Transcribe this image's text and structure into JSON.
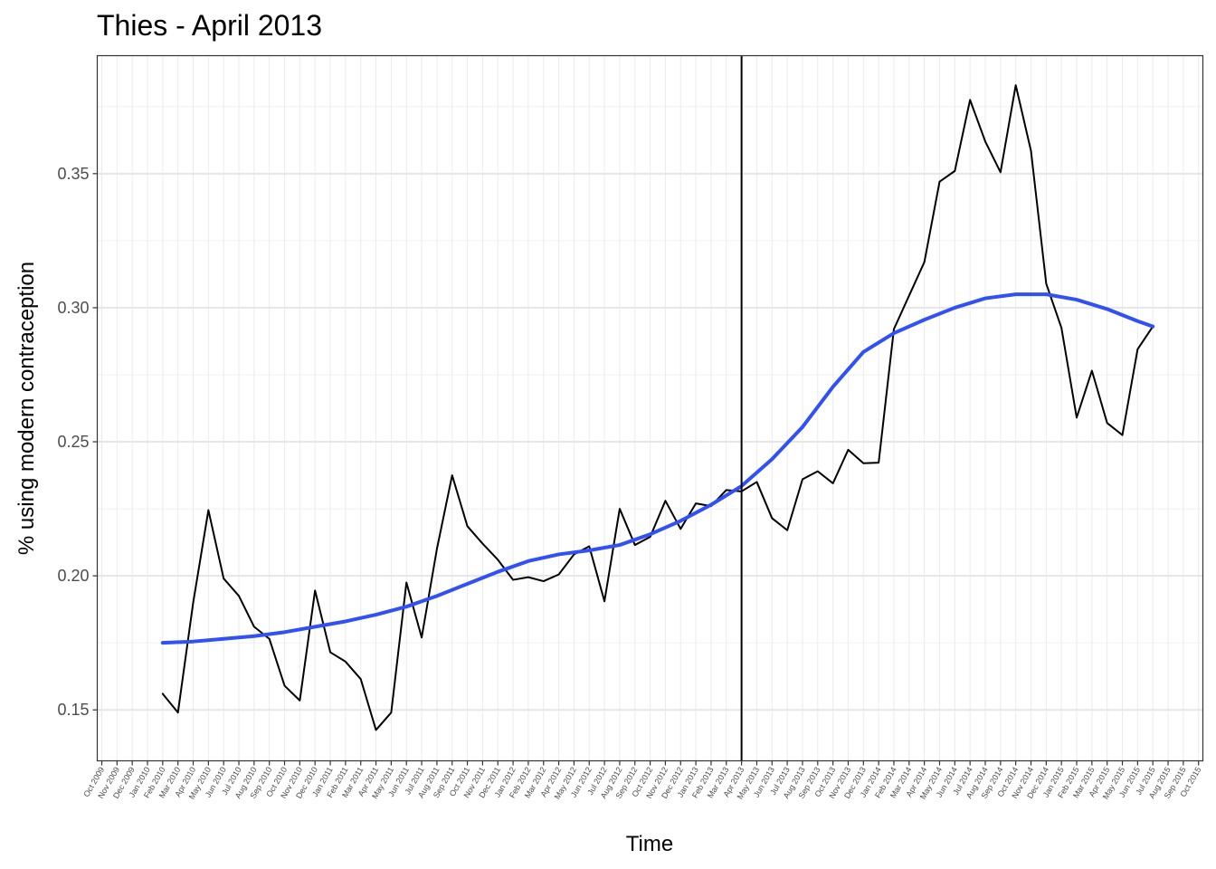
{
  "chart_data": {
    "type": "line",
    "title": "Thies - April 2013",
    "xlabel": "Time",
    "ylabel": "% using modern contraception",
    "x_tick_labels": [
      "Oct 2009",
      "Nov 2009",
      "Dec 2009",
      "Jan 2010",
      "Feb 2010",
      "Mar 2010",
      "Apr 2010",
      "May 2010",
      "Jun 2010",
      "Jul 2010",
      "Aug 2010",
      "Sep 2010",
      "Oct 2010",
      "Nov 2010",
      "Dec 2010",
      "Jan 2011",
      "Feb 2011",
      "Mar 2011",
      "Apr 2011",
      "May 2011",
      "Jun 2011",
      "Jul 2011",
      "Aug 2011",
      "Sep 2011",
      "Oct 2011",
      "Nov 2011",
      "Dec 2011",
      "Jan 2012",
      "Feb 2012",
      "Mar 2012",
      "Apr 2012",
      "May 2012",
      "Jun 2012",
      "Jul 2012",
      "Aug 2012",
      "Sep 2012",
      "Oct 2012",
      "Nov 2012",
      "Dec 2012",
      "Jan 2013",
      "Feb 2013",
      "Mar 2013",
      "Apr 2013",
      "May 2013",
      "Jun 2013",
      "Jul 2013",
      "Aug 2013",
      "Sep 2013",
      "Oct 2013",
      "Nov 2013",
      "Dec 2013",
      "Jan 2014",
      "Feb 2014",
      "Mar 2014",
      "Apr 2014",
      "May 2014",
      "Jun 2014",
      "Jul 2014",
      "Aug 2014",
      "Sep 2014",
      "Oct 2014",
      "Nov 2014",
      "Dec 2014",
      "Jan 2015",
      "Feb 2015",
      "Mar 2015",
      "Apr 2015",
      "May 2015",
      "Jun 2015",
      "Jul 2015",
      "Aug 2015",
      "Sep 2015",
      "Oct 2015"
    ],
    "y_ticks": [
      "0.15",
      "0.20",
      "0.25",
      "0.30",
      "0.35"
    ],
    "ylim": [
      0.131,
      0.394
    ],
    "grid": true,
    "series": [
      {
        "color": "#000000",
        "points": [
          [
            "Feb 2010",
            0.156
          ],
          [
            "Mar 2010",
            0.149
          ],
          [
            "Apr 2010",
            0.19
          ],
          [
            "May 2010",
            0.2245
          ],
          [
            "Jun 2010",
            0.199
          ],
          [
            "Jul 2010",
            0.1925
          ],
          [
            "Aug 2010",
            0.181
          ],
          [
            "Sep 2010",
            0.1765
          ],
          [
            "Oct 2010",
            0.159
          ],
          [
            "Nov 2010",
            0.1535
          ],
          [
            "Dec 2010",
            0.1945
          ],
          [
            "Jan 2011",
            0.1715
          ],
          [
            "Feb 2011",
            0.168
          ],
          [
            "Mar 2011",
            0.1615
          ],
          [
            "Apr 2011",
            0.1425
          ],
          [
            "May 2011",
            0.149
          ],
          [
            "Jun 2011",
            0.1975
          ],
          [
            "Jul 2011",
            0.177
          ],
          [
            "Aug 2011",
            0.21
          ],
          [
            "Sep 2011",
            0.2375
          ],
          [
            "Oct 2011",
            0.2185
          ],
          [
            "Nov 2011",
            0.212
          ],
          [
            "Dec 2011",
            0.206
          ],
          [
            "Jan 2012",
            0.1985
          ],
          [
            "Feb 2012",
            0.1995
          ],
          [
            "Mar 2012",
            0.198
          ],
          [
            "Apr 2012",
            0.2005
          ],
          [
            "May 2012",
            0.208
          ],
          [
            "Jun 2012",
            0.211
          ],
          [
            "Jul 2012",
            0.1905
          ],
          [
            "Aug 2012",
            0.225
          ],
          [
            "Sep 2012",
            0.2115
          ],
          [
            "Oct 2012",
            0.2145
          ],
          [
            "Nov 2012",
            0.228
          ],
          [
            "Dec 2012",
            0.2175
          ],
          [
            "Jan 2013",
            0.227
          ],
          [
            "Feb 2013",
            0.226
          ],
          [
            "Mar 2013",
            0.232
          ],
          [
            "Apr 2013",
            0.2315
          ],
          [
            "May 2013",
            0.235
          ],
          [
            "Jun 2013",
            0.2215
          ],
          [
            "Jul 2013",
            0.217
          ],
          [
            "Aug 2013",
            0.236
          ],
          [
            "Sep 2013",
            0.239
          ],
          [
            "Oct 2013",
            0.2345
          ],
          [
            "Nov 2013",
            0.247
          ],
          [
            "Dec 2013",
            0.242
          ],
          [
            "Jan 2014",
            0.2422
          ],
          [
            "Feb 2014",
            0.292
          ],
          [
            "Mar 2014",
            0.3045
          ],
          [
            "Apr 2014",
            0.317
          ],
          [
            "May 2014",
            0.347
          ],
          [
            "Jun 2014",
            0.351
          ],
          [
            "Jul 2014",
            0.3775
          ],
          [
            "Aug 2014",
            0.362
          ],
          [
            "Sep 2014",
            0.3505
          ],
          [
            "Oct 2014",
            0.383
          ],
          [
            "Nov 2014",
            0.3585
          ],
          [
            "Dec 2014",
            0.309
          ],
          [
            "Jan 2015",
            0.2925
          ],
          [
            "Feb 2015",
            0.259
          ],
          [
            "Mar 2015",
            0.2765
          ],
          [
            "Apr 2015",
            0.257
          ],
          [
            "May 2015",
            0.2525
          ],
          [
            "Jun 2015",
            0.2845
          ],
          [
            "Jul 2015",
            0.293
          ]
        ]
      },
      {
        "color": "#3050f8",
        "points": [
          [
            "Feb 2010",
            0.175
          ],
          [
            "Apr 2010",
            0.1755
          ],
          [
            "Jun 2010",
            0.1765
          ],
          [
            "Aug 2010",
            0.1775
          ],
          [
            "Oct 2010",
            0.179
          ],
          [
            "Dec 2010",
            0.181
          ],
          [
            "Feb 2011",
            0.183
          ],
          [
            "Apr 2011",
            0.1855
          ],
          [
            "Jun 2011",
            0.1885
          ],
          [
            "Aug 2011",
            0.1925
          ],
          [
            "Oct 2011",
            0.197
          ],
          [
            "Dec 2011",
            0.2015
          ],
          [
            "Feb 2012",
            0.2055
          ],
          [
            "Apr 2012",
            0.208
          ],
          [
            "Jun 2012",
            0.2095
          ],
          [
            "Aug 2012",
            0.2115
          ],
          [
            "Oct 2012",
            0.2155
          ],
          [
            "Dec 2012",
            0.2205
          ],
          [
            "Feb 2013",
            0.2265
          ],
          [
            "Apr 2013",
            0.2335
          ],
          [
            "Jun 2013",
            0.2435
          ],
          [
            "Aug 2013",
            0.2555
          ],
          [
            "Oct 2013",
            0.2705
          ],
          [
            "Dec 2013",
            0.2835
          ],
          [
            "Feb 2014",
            0.2905
          ],
          [
            "Apr 2014",
            0.2955
          ],
          [
            "Jun 2014",
            0.3
          ],
          [
            "Aug 2014",
            0.3035
          ],
          [
            "Oct 2014",
            0.305
          ],
          [
            "Dec 2014",
            0.305
          ],
          [
            "Feb 2015",
            0.303
          ],
          [
            "Apr 2015",
            0.2995
          ],
          [
            "Jun 2015",
            0.295
          ],
          [
            "Jul 2015",
            0.293
          ]
        ]
      }
    ],
    "vline": "Apr 2013"
  }
}
